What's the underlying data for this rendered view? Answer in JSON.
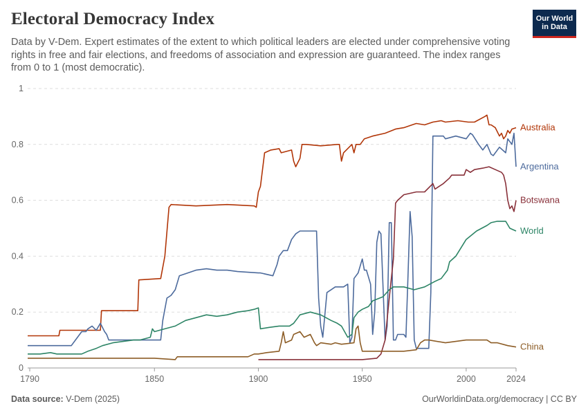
{
  "header": {
    "title": "Electoral Democracy Index",
    "subtitle": "Data by V-Dem. Expert estimates of the extent to which political leaders are elected under comprehensive voting rights in free and fair elections, and freedoms of association and expression are guaranteed. The index ranges from 0 to 1 (most democratic).",
    "logo_line1": "Our World",
    "logo_line2": "in Data"
  },
  "footer": {
    "source_label": "Data source:",
    "source_value": "V-Dem (2025)",
    "link": "OurWorldinData.org/democracy | CC BY"
  },
  "chart_data": {
    "type": "line",
    "title": "Electoral Democracy Index",
    "xlabel": "",
    "ylabel": "",
    "xlim": [
      1789,
      2024
    ],
    "ylim": [
      0,
      1
    ],
    "x_ticks": [
      1790,
      1850,
      1900,
      1950,
      2000,
      2024
    ],
    "y_ticks": [
      {
        "value": 0,
        "label": "0"
      },
      {
        "value": 0.2,
        "label": "0.2"
      },
      {
        "value": 0.4,
        "label": "0.4"
      },
      {
        "value": 0.6,
        "label": "0.6"
      },
      {
        "value": 0.8,
        "label": "0.8"
      },
      {
        "value": 1,
        "label": "1"
      }
    ],
    "grid": "horizontal dashed",
    "legend": "labels at line ends (right)",
    "series": [
      {
        "name": "Australia",
        "color": "#b13507",
        "x": [
          1789,
          1804,
          1804.5,
          1824,
          1824.5,
          1842,
          1842.5,
          1853,
          1855,
          1857,
          1858,
          1870,
          1885,
          1898,
          1899,
          1900,
          1901,
          1903,
          1906,
          1910,
          1911,
          1916,
          1917,
          1918,
          1920,
          1921,
          1923,
          1930,
          1938,
          1939,
          1940,
          1941,
          1945,
          1946,
          1947,
          1949,
          1951,
          1955,
          1961,
          1966,
          1970,
          1974,
          1976,
          1980,
          1984,
          1988,
          1990,
          1996,
          2001,
          2004,
          2009,
          2010,
          2011,
          2012,
          2014,
          2016,
          2017,
          2018,
          2019,
          2020,
          2021,
          2022,
          2024
        ],
        "y": [
          0.115,
          0.115,
          0.135,
          0.135,
          0.205,
          0.205,
          0.315,
          0.32,
          0.4,
          0.575,
          0.585,
          0.58,
          0.585,
          0.58,
          0.575,
          0.63,
          0.65,
          0.77,
          0.78,
          0.785,
          0.77,
          0.78,
          0.74,
          0.72,
          0.75,
          0.8,
          0.8,
          0.795,
          0.8,
          0.8,
          0.74,
          0.77,
          0.8,
          0.77,
          0.8,
          0.8,
          0.82,
          0.83,
          0.84,
          0.855,
          0.86,
          0.87,
          0.875,
          0.87,
          0.88,
          0.885,
          0.88,
          0.885,
          0.88,
          0.88,
          0.9,
          0.905,
          0.87,
          0.87,
          0.86,
          0.83,
          0.84,
          0.82,
          0.83,
          0.85,
          0.84,
          0.855,
          0.86
        ]
      },
      {
        "name": "Argentina",
        "color": "#4c6a9c",
        "x": [
          1789,
          1810,
          1812,
          1815,
          1817,
          1818,
          1820,
          1822,
          1824,
          1826,
          1827,
          1828,
          1830,
          1844,
          1850,
          1853,
          1854,
          1856,
          1858,
          1860,
          1862,
          1870,
          1875,
          1880,
          1885,
          1890,
          1900,
          1901,
          1907,
          1909,
          1910,
          1912,
          1914,
          1916,
          1918,
          1920,
          1924,
          1928,
          1929,
          1930,
          1931,
          1931.5,
          1933,
          1935,
          1937,
          1939,
          1941,
          1943,
          1944,
          1945,
          1946,
          1948,
          1950,
          1951,
          1952,
          1954,
          1955,
          1956,
          1957,
          1958,
          1959,
          1961,
          1962,
          1963,
          1964,
          1965,
          1966,
          1967,
          1970,
          1971,
          1972,
          1973,
          1974,
          1975,
          1976,
          1980,
          1982,
          1983,
          1984,
          1989,
          1990,
          1995,
          2000,
          2002,
          2003,
          2006,
          2008,
          2010,
          2012,
          2013,
          2016,
          2019,
          2020,
          2022,
          2023,
          2024
        ],
        "y": [
          0.08,
          0.08,
          0.1,
          0.13,
          0.13,
          0.14,
          0.15,
          0.135,
          0.16,
          0.13,
          0.12,
          0.1,
          0.1,
          0.1,
          0.1,
          0.1,
          0.17,
          0.25,
          0.26,
          0.28,
          0.33,
          0.35,
          0.355,
          0.35,
          0.35,
          0.345,
          0.34,
          0.34,
          0.33,
          0.37,
          0.4,
          0.42,
          0.42,
          0.46,
          0.48,
          0.49,
          0.49,
          0.49,
          0.25,
          0.15,
          0.11,
          0.15,
          0.27,
          0.28,
          0.29,
          0.29,
          0.29,
          0.3,
          0.09,
          0.11,
          0.32,
          0.34,
          0.39,
          0.35,
          0.35,
          0.3,
          0.12,
          0.2,
          0.45,
          0.49,
          0.48,
          0.1,
          0.15,
          0.52,
          0.52,
          0.1,
          0.1,
          0.12,
          0.12,
          0.11,
          0.33,
          0.56,
          0.47,
          0.1,
          0.07,
          0.07,
          0.07,
          0.27,
          0.83,
          0.83,
          0.82,
          0.83,
          0.82,
          0.84,
          0.835,
          0.8,
          0.78,
          0.8,
          0.765,
          0.76,
          0.79,
          0.77,
          0.82,
          0.8,
          0.84,
          0.72
        ]
      },
      {
        "name": "Botswana",
        "color": "#883039",
        "x": [
          1900,
          1930,
          1950,
          1957,
          1959,
          1961,
          1963,
          1965,
          1966,
          1967,
          1970,
          1976,
          1980,
          1984,
          1985,
          1989,
          1992,
          1993,
          1999,
          2000,
          2002,
          2004,
          2008,
          2011,
          2014,
          2017,
          2018,
          2019,
          2020,
          2021,
          2022,
          2023,
          2024
        ],
        "y": [
          0.03,
          0.03,
          0.03,
          0.035,
          0.05,
          0.1,
          0.25,
          0.39,
          0.59,
          0.6,
          0.62,
          0.63,
          0.63,
          0.66,
          0.64,
          0.66,
          0.68,
          0.69,
          0.69,
          0.71,
          0.7,
          0.71,
          0.715,
          0.72,
          0.71,
          0.7,
          0.69,
          0.66,
          0.6,
          0.57,
          0.58,
          0.56,
          0.6
        ]
      },
      {
        "name": "World",
        "color": "#2c8465",
        "x": [
          1789,
          1795,
          1800,
          1803,
          1810,
          1815,
          1818,
          1822,
          1825,
          1830,
          1840,
          1843,
          1848,
          1849,
          1850,
          1855,
          1860,
          1865,
          1870,
          1875,
          1880,
          1885,
          1890,
          1895,
          1898,
          1900,
          1901,
          1905,
          1910,
          1915,
          1917,
          1919,
          1920,
          1925,
          1930,
          1935,
          1938,
          1940,
          1943,
          1945,
          1946,
          1948,
          1950,
          1953,
          1955,
          1960,
          1963,
          1965,
          1970,
          1975,
          1980,
          1985,
          1988,
          1991,
          1992,
          1995,
          2000,
          2005,
          2010,
          2012,
          2015,
          2019,
          2021,
          2024
        ],
        "y": [
          0.05,
          0.05,
          0.055,
          0.05,
          0.05,
          0.05,
          0.06,
          0.07,
          0.08,
          0.09,
          0.1,
          0.1,
          0.11,
          0.14,
          0.13,
          0.14,
          0.15,
          0.17,
          0.18,
          0.19,
          0.185,
          0.19,
          0.2,
          0.205,
          0.21,
          0.215,
          0.14,
          0.145,
          0.15,
          0.15,
          0.16,
          0.18,
          0.19,
          0.2,
          0.19,
          0.17,
          0.16,
          0.15,
          0.11,
          0.12,
          0.18,
          0.2,
          0.21,
          0.22,
          0.24,
          0.255,
          0.28,
          0.29,
          0.29,
          0.28,
          0.29,
          0.31,
          0.32,
          0.35,
          0.38,
          0.4,
          0.46,
          0.49,
          0.51,
          0.52,
          0.525,
          0.525,
          0.5,
          0.49
        ]
      },
      {
        "name": "China",
        "color": "#8c5c25",
        "x": [
          1789,
          1800,
          1850,
          1860,
          1861,
          1895,
          1898,
          1900,
          1904,
          1910,
          1911,
          1912,
          1913,
          1916,
          1917,
          1920,
          1922,
          1925,
          1927,
          1928,
          1930,
          1935,
          1937,
          1940,
          1946,
          1947,
          1948,
          1949,
          1950,
          1955,
          1960,
          1970,
          1976,
          1978,
          1980,
          1982,
          1990,
          2000,
          2005,
          2010,
          2012,
          2015,
          2020,
          2024
        ],
        "y": [
          0.035,
          0.035,
          0.035,
          0.03,
          0.04,
          0.04,
          0.05,
          0.05,
          0.055,
          0.06,
          0.09,
          0.13,
          0.09,
          0.1,
          0.12,
          0.13,
          0.11,
          0.12,
          0.09,
          0.08,
          0.09,
          0.085,
          0.09,
          0.085,
          0.09,
          0.14,
          0.15,
          0.09,
          0.06,
          0.06,
          0.06,
          0.06,
          0.065,
          0.09,
          0.1,
          0.1,
          0.09,
          0.1,
          0.1,
          0.1,
          0.09,
          0.09,
          0.08,
          0.075
        ]
      }
    ]
  }
}
